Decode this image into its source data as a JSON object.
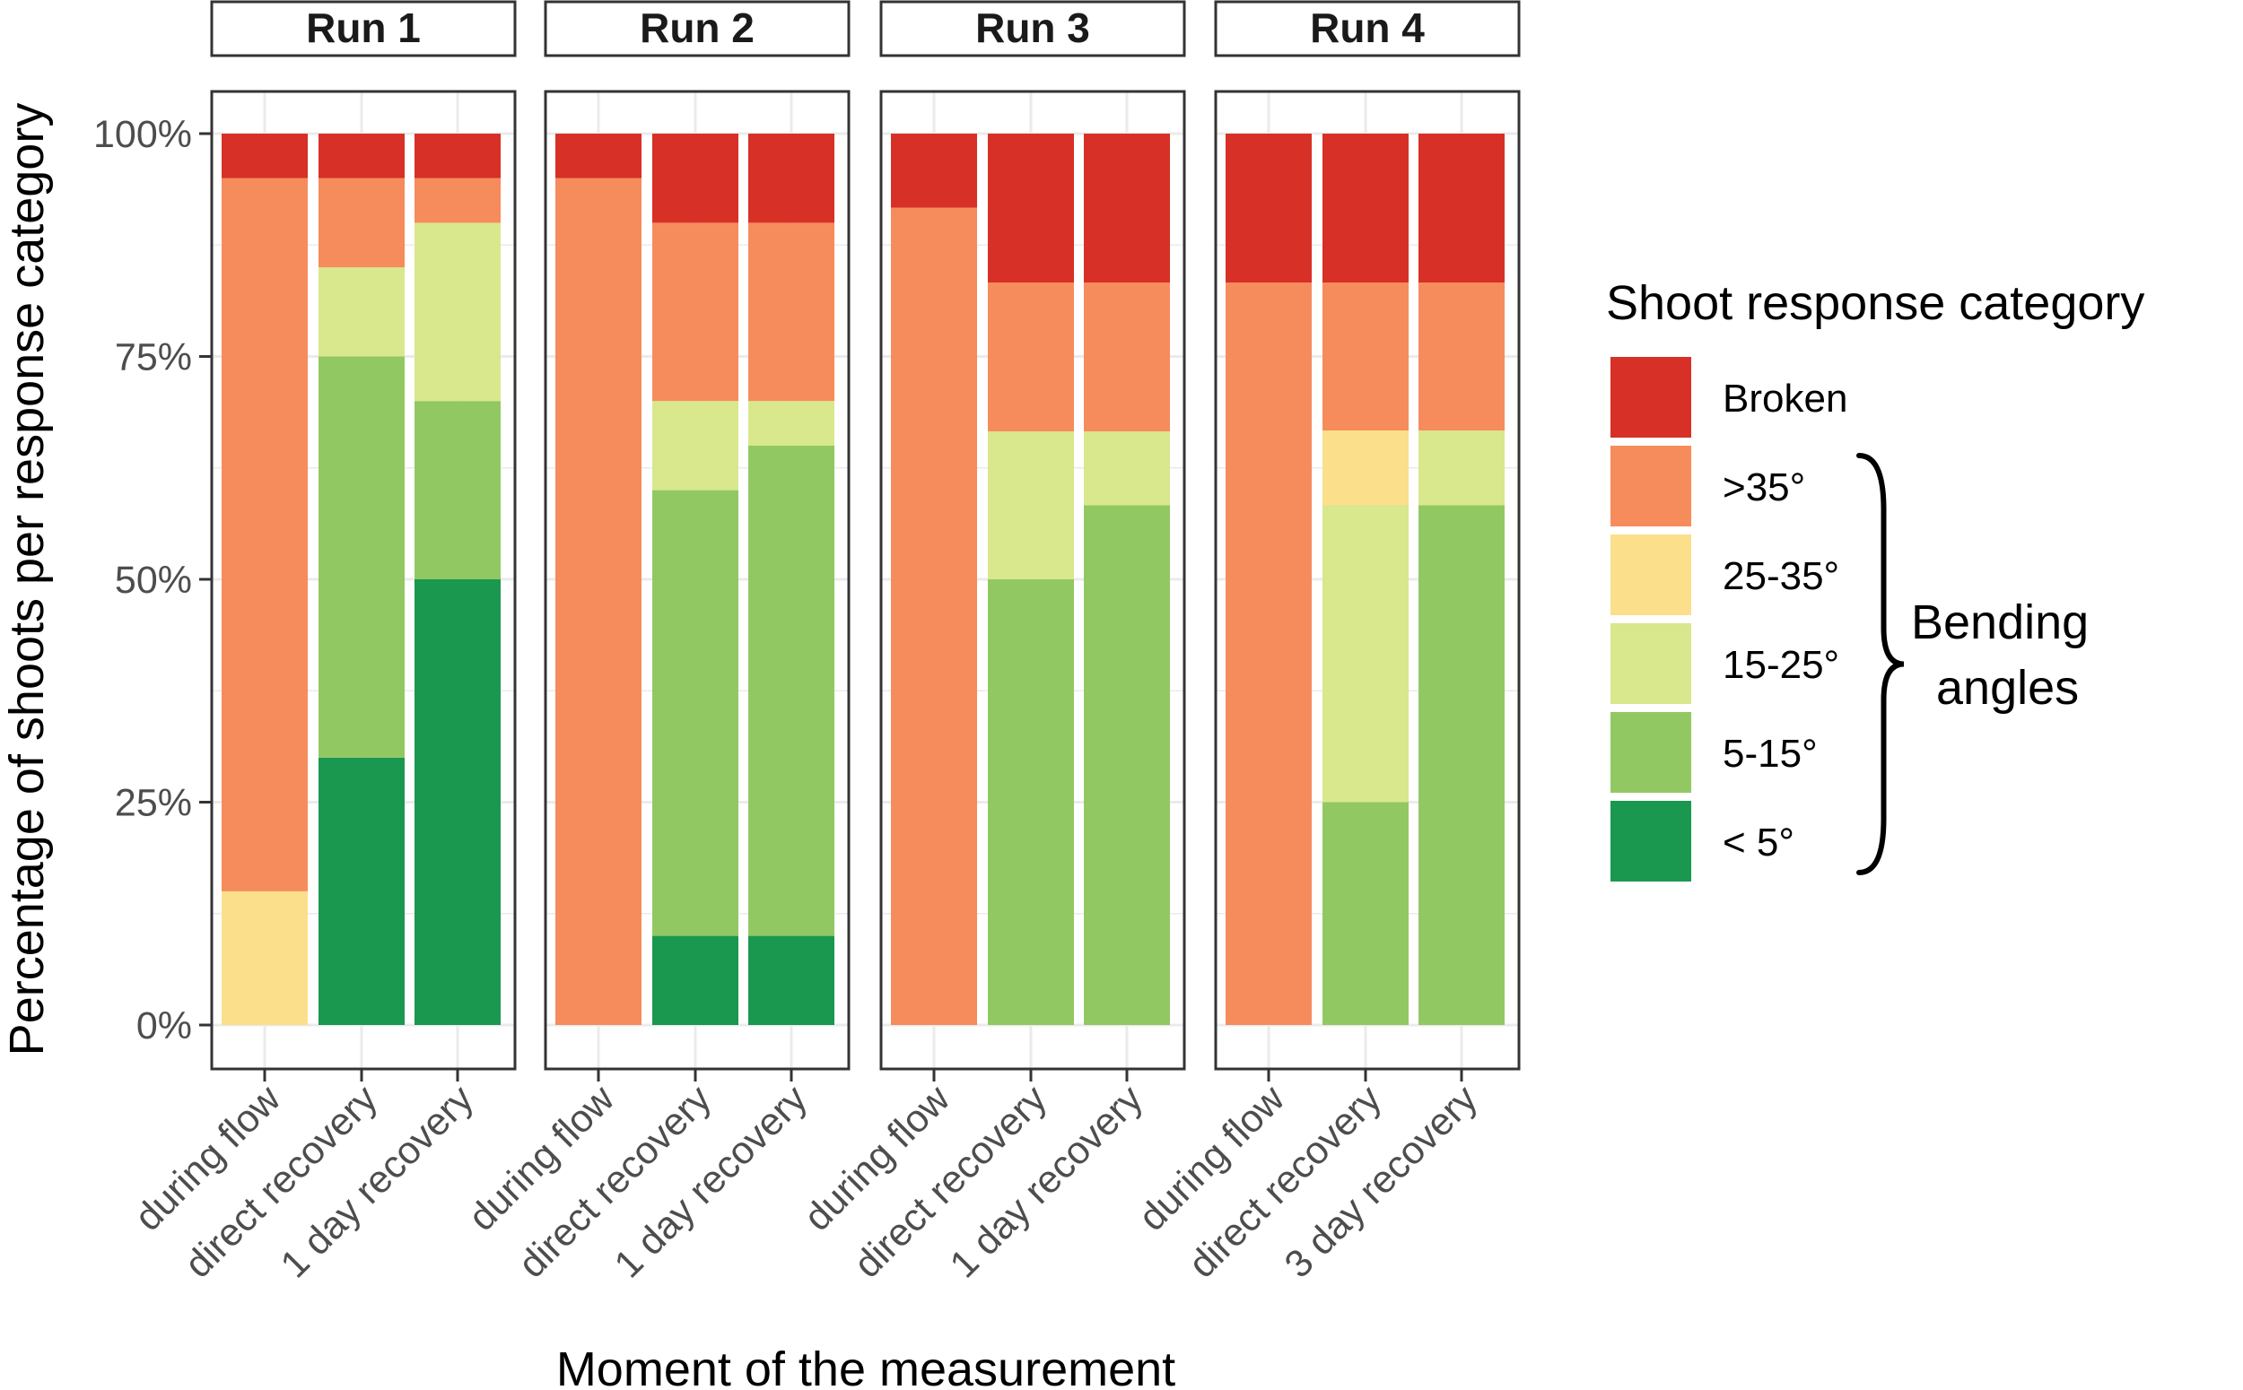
{
  "chart_data": {
    "type": "bar",
    "stacked": true,
    "xlabel": "Moment of the measurement",
    "ylabel": "Percentage of shoots per response category",
    "ylim": [
      0,
      100
    ],
    "y_ticks": [
      0,
      25,
      50,
      75,
      100
    ],
    "y_tick_labels": [
      "0%",
      "25%",
      "50%",
      "75%",
      "100%"
    ],
    "grid": true,
    "legend": {
      "title": "Shoot response category",
      "position": "right",
      "group_label_line1": "Bending",
      "group_label_line2": "angles"
    },
    "categories_order": [
      "Broken",
      ">35°",
      "25-35°",
      "15-25°",
      "5-15°",
      "< 5°"
    ],
    "colors": {
      "Broken": "#d73027",
      ">35°": "#f68c5c",
      "25-35°": "#fcdf8b",
      "15-25°": "#d9e78d",
      "5-15°": "#92c862",
      "< 5°": "#1a9850"
    },
    "panels": [
      {
        "title": "Run 1",
        "bars": [
          {
            "label": "during flow",
            "values": {
              "Broken": 5,
              ">35°": 80,
              "25-35°": 15,
              "15-25°": 0,
              "5-15°": 0,
              "< 5°": 0
            }
          },
          {
            "label": "direct recovery",
            "values": {
              "Broken": 5,
              ">35°": 10,
              "25-35°": 0,
              "15-25°": 10,
              "5-15°": 45,
              "< 5°": 30
            }
          },
          {
            "label": "1 day recovery",
            "values": {
              "Broken": 5,
              ">35°": 5,
              "25-35°": 0,
              "15-25°": 20,
              "5-15°": 20,
              "< 5°": 50
            }
          }
        ]
      },
      {
        "title": "Run 2",
        "bars": [
          {
            "label": "during flow",
            "values": {
              "Broken": 5,
              ">35°": 95,
              "25-35°": 0,
              "15-25°": 0,
              "5-15°": 0,
              "< 5°": 0
            }
          },
          {
            "label": "direct recovery",
            "values": {
              "Broken": 10,
              ">35°": 20,
              "25-35°": 0,
              "15-25°": 10,
              "5-15°": 50,
              "< 5°": 10
            }
          },
          {
            "label": "1 day recovery",
            "values": {
              "Broken": 10,
              ">35°": 20,
              "25-35°": 0,
              "15-25°": 5,
              "5-15°": 55,
              "< 5°": 10
            }
          }
        ]
      },
      {
        "title": "Run 3",
        "bars": [
          {
            "label": "during flow",
            "values": {
              "Broken": 8.3,
              ">35°": 91.7,
              "25-35°": 0,
              "15-25°": 0,
              "5-15°": 0,
              "< 5°": 0
            }
          },
          {
            "label": "direct recovery",
            "values": {
              "Broken": 16.7,
              ">35°": 16.7,
              "25-35°": 0,
              "15-25°": 16.6,
              "5-15°": 50,
              "< 5°": 0
            }
          },
          {
            "label": "1 day recovery",
            "values": {
              "Broken": 16.7,
              ">35°": 16.7,
              "25-35°": 0,
              "15-25°": 8.3,
              "5-15°": 58.3,
              "< 5°": 0
            }
          }
        ]
      },
      {
        "title": "Run 4",
        "bars": [
          {
            "label": "during flow",
            "values": {
              "Broken": 16.7,
              ">35°": 83.3,
              "25-35°": 0,
              "15-25°": 0,
              "5-15°": 0,
              "< 5°": 0
            }
          },
          {
            "label": "direct recovery",
            "values": {
              "Broken": 16.7,
              ">35°": 16.6,
              "25-35°": 8.4,
              "15-25°": 33.3,
              "5-15°": 25,
              "< 5°": 0
            }
          },
          {
            "label": "3 day recovery",
            "values": {
              "Broken": 16.7,
              ">35°": 16.6,
              "25-35°": 0,
              "15-25°": 8.4,
              "5-15°": 58.3,
              "< 5°": 0
            }
          }
        ]
      }
    ]
  }
}
